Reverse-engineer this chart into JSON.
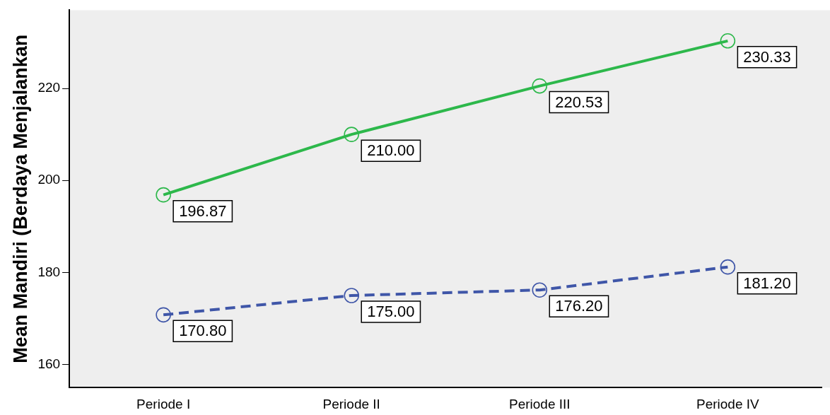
{
  "chart_data": {
    "type": "line",
    "ylabel": "Mean Mandiri (Berdaya Menjalankan",
    "categories": [
      "Periode I",
      "Periode II",
      "Periode III",
      "Periode IV"
    ],
    "series": [
      {
        "color": "#2db84b",
        "values": [
          196.87,
          210.0,
          220.53,
          230.33
        ],
        "value_labels": [
          "196.87",
          "210.00",
          "220.53",
          "230.33"
        ],
        "line_style": "solid"
      },
      {
        "color": "#3f56a8",
        "values": [
          170.8,
          175.0,
          176.2,
          181.2
        ],
        "value_labels": [
          "170.80",
          "175.00",
          "176.20",
          "181.20"
        ],
        "line_style": "dashed"
      }
    ],
    "ylim": [
      155,
      237
    ],
    "yticks": [
      160,
      180,
      200,
      220
    ],
    "marker": "circle",
    "grid": false,
    "legend": false
  }
}
